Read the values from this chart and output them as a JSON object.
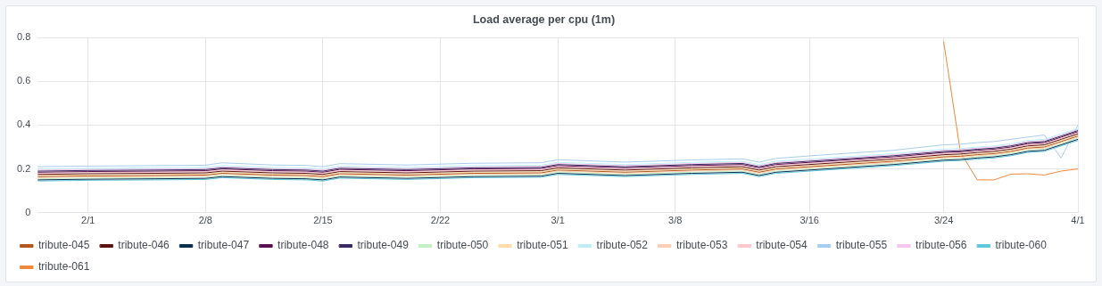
{
  "chart_data": {
    "type": "line",
    "title": "Load average per cpu (1m)",
    "x": [
      "--01-29",
      "--02-01",
      "--02-05",
      "--02-08",
      "--02-09",
      "--02-12",
      "--02-14",
      "--02-15",
      "--02-16",
      "--02-20",
      "--02-24",
      "--02-28",
      "--03-01",
      "--03-05",
      "--03-09",
      "--03-12",
      "--03-13",
      "--03-14",
      "--03-17",
      "--03-21",
      "--03-24",
      "--03-25",
      "--03-26",
      "--03-27",
      "--03-28",
      "--03-29",
      "--03-30",
      "--03-31",
      "--04-01"
    ],
    "xlim": [
      "--01-29",
      "--04-01"
    ],
    "xticks": [
      {
        "value": "--02-01",
        "label": "2/1"
      },
      {
        "value": "--02-08",
        "label": "2/8"
      },
      {
        "value": "--02-15",
        "label": "2/15"
      },
      {
        "value": "--02-22",
        "label": "2/22"
      },
      {
        "value": "--03-01",
        "label": "3/1"
      },
      {
        "value": "--03-08",
        "label": "3/8"
      },
      {
        "value": "--03-16",
        "label": "3/16"
      },
      {
        "value": "--03-24",
        "label": "3/24"
      },
      {
        "value": "--04-01",
        "label": "4/1"
      }
    ],
    "ylim": [
      0,
      0.8
    ],
    "yticks": [
      0,
      0.2,
      0.4,
      0.6,
      0.8
    ],
    "grid": true,
    "legend": "bottom",
    "marker": "none",
    "line_style": "solid",
    "series": [
      {
        "name": "tribute-045",
        "color": "#b0571b",
        "values": [
          0.165,
          0.168,
          0.17,
          0.172,
          0.18,
          0.172,
          0.17,
          0.165,
          0.178,
          0.172,
          0.18,
          0.182,
          0.195,
          0.185,
          0.195,
          0.2,
          0.185,
          0.2,
          0.215,
          0.235,
          0.255,
          0.258,
          0.265,
          0.27,
          0.28,
          0.295,
          0.3,
          0.325,
          0.35
        ]
      },
      {
        "name": "tribute-046",
        "color": "#5c1010",
        "values": [
          0.175,
          0.178,
          0.18,
          0.182,
          0.19,
          0.182,
          0.18,
          0.175,
          0.188,
          0.182,
          0.19,
          0.192,
          0.205,
          0.195,
          0.205,
          0.21,
          0.195,
          0.21,
          0.225,
          0.245,
          0.265,
          0.268,
          0.275,
          0.28,
          0.29,
          0.305,
          0.31,
          0.335,
          0.36
        ]
      },
      {
        "name": "tribute-047",
        "color": "#0a2f51",
        "values": [
          0.15,
          0.153,
          0.155,
          0.157,
          0.165,
          0.157,
          0.155,
          0.15,
          0.163,
          0.157,
          0.165,
          0.167,
          0.18,
          0.17,
          0.18,
          0.185,
          0.17,
          0.185,
          0.2,
          0.22,
          0.24,
          0.243,
          0.25,
          0.255,
          0.265,
          0.28,
          0.285,
          0.31,
          0.335
        ]
      },
      {
        "name": "tribute-048",
        "color": "#5a0f4f",
        "values": [
          0.185,
          0.188,
          0.19,
          0.192,
          0.2,
          0.192,
          0.19,
          0.185,
          0.198,
          0.192,
          0.2,
          0.202,
          0.215,
          0.205,
          0.215,
          0.22,
          0.205,
          0.22,
          0.235,
          0.255,
          0.275,
          0.278,
          0.285,
          0.29,
          0.3,
          0.315,
          0.32,
          0.345,
          0.37
        ]
      },
      {
        "name": "tribute-049",
        "color": "#3b2a60",
        "values": [
          0.19,
          0.193,
          0.195,
          0.197,
          0.205,
          0.197,
          0.195,
          0.19,
          0.203,
          0.197,
          0.205,
          0.207,
          0.22,
          0.21,
          0.22,
          0.225,
          0.21,
          0.225,
          0.24,
          0.26,
          0.28,
          0.283,
          0.29,
          0.295,
          0.305,
          0.32,
          0.325,
          0.35,
          0.375
        ]
      },
      {
        "name": "tribute-050",
        "color": "#c4efc4",
        "values": [
          0.155,
          0.158,
          0.16,
          0.162,
          0.17,
          0.162,
          0.16,
          0.155,
          0.168,
          0.162,
          0.17,
          0.172,
          0.185,
          0.175,
          0.185,
          0.19,
          0.175,
          0.19,
          0.205,
          0.225,
          0.245,
          0.248,
          0.255,
          0.26,
          0.27,
          0.285,
          0.29,
          0.315,
          0.34
        ]
      },
      {
        "name": "tribute-051",
        "color": "#fcdcaa",
        "values": [
          0.17,
          0.173,
          0.175,
          0.177,
          0.185,
          0.177,
          0.175,
          0.17,
          0.183,
          0.177,
          0.185,
          0.187,
          0.2,
          0.19,
          0.2,
          0.205,
          0.19,
          0.205,
          0.22,
          0.24,
          0.26,
          0.263,
          0.27,
          0.275,
          0.285,
          0.3,
          0.305,
          0.33,
          0.355
        ]
      },
      {
        "name": "tribute-052",
        "color": "#bdeef5",
        "values": [
          0.2,
          0.203,
          0.205,
          0.207,
          0.215,
          0.207,
          0.205,
          0.2,
          0.213,
          0.207,
          0.215,
          0.217,
          0.23,
          0.22,
          0.23,
          0.235,
          0.22,
          0.235,
          0.25,
          0.27,
          0.29,
          0.293,
          0.3,
          0.305,
          0.315,
          0.33,
          0.335,
          0.36,
          0.385
        ]
      },
      {
        "name": "tribute-053",
        "color": "#fbcfb4",
        "values": [
          0.16,
          0.163,
          0.165,
          0.167,
          0.175,
          0.167,
          0.165,
          0.16,
          0.173,
          0.167,
          0.175,
          0.177,
          0.19,
          0.18,
          0.19,
          0.195,
          0.18,
          0.195,
          0.21,
          0.23,
          0.25,
          0.253,
          0.26,
          0.265,
          0.275,
          0.29,
          0.295,
          0.32,
          0.345
        ]
      },
      {
        "name": "tribute-054",
        "color": "#fbc8ce",
        "values": [
          0.18,
          0.183,
          0.185,
          0.187,
          0.195,
          0.187,
          0.185,
          0.18,
          0.193,
          0.187,
          0.195,
          0.197,
          0.21,
          0.2,
          0.21,
          0.215,
          0.2,
          0.215,
          0.23,
          0.25,
          0.27,
          0.273,
          0.28,
          0.285,
          0.295,
          0.31,
          0.315,
          0.34,
          0.365
        ]
      },
      {
        "name": "tribute-055",
        "color": "#a9cdee",
        "values": [
          0.21,
          0.213,
          0.215,
          0.217,
          0.228,
          0.218,
          0.216,
          0.21,
          0.224,
          0.218,
          0.226,
          0.228,
          0.242,
          0.231,
          0.241,
          0.246,
          0.231,
          0.248,
          0.265,
          0.285,
          0.31,
          0.313,
          0.32,
          0.325,
          0.335,
          0.345,
          0.355,
          0.25,
          0.4
        ]
      },
      {
        "name": "tribute-056",
        "color": "#f5c6f0",
        "values": [
          0.195,
          0.198,
          0.2,
          0.202,
          0.21,
          0.202,
          0.2,
          0.195,
          0.208,
          0.202,
          0.21,
          0.212,
          0.225,
          0.215,
          0.225,
          0.23,
          0.215,
          0.23,
          0.245,
          0.265,
          0.285,
          0.288,
          0.295,
          0.3,
          0.31,
          0.325,
          0.33,
          0.355,
          0.38
        ]
      },
      {
        "name": "tribute-060",
        "color": "#5fc7dc",
        "values": [
          0.145,
          0.148,
          0.15,
          0.152,
          0.16,
          0.152,
          0.15,
          0.145,
          0.158,
          0.152,
          0.16,
          0.162,
          0.175,
          0.165,
          0.175,
          0.18,
          0.165,
          0.18,
          0.195,
          0.215,
          0.235,
          0.238,
          0.245,
          0.25,
          0.26,
          0.275,
          0.28,
          0.305,
          0.33
        ]
      },
      {
        "name": "tribute-061",
        "color": "#f0883a",
        "values": [
          null,
          null,
          null,
          null,
          null,
          null,
          null,
          null,
          null,
          null,
          null,
          null,
          null,
          null,
          null,
          null,
          null,
          null,
          null,
          null,
          0.78,
          0.276,
          0.15,
          0.15,
          0.176,
          0.178,
          0.172,
          0.19,
          0.2
        ]
      }
    ]
  }
}
